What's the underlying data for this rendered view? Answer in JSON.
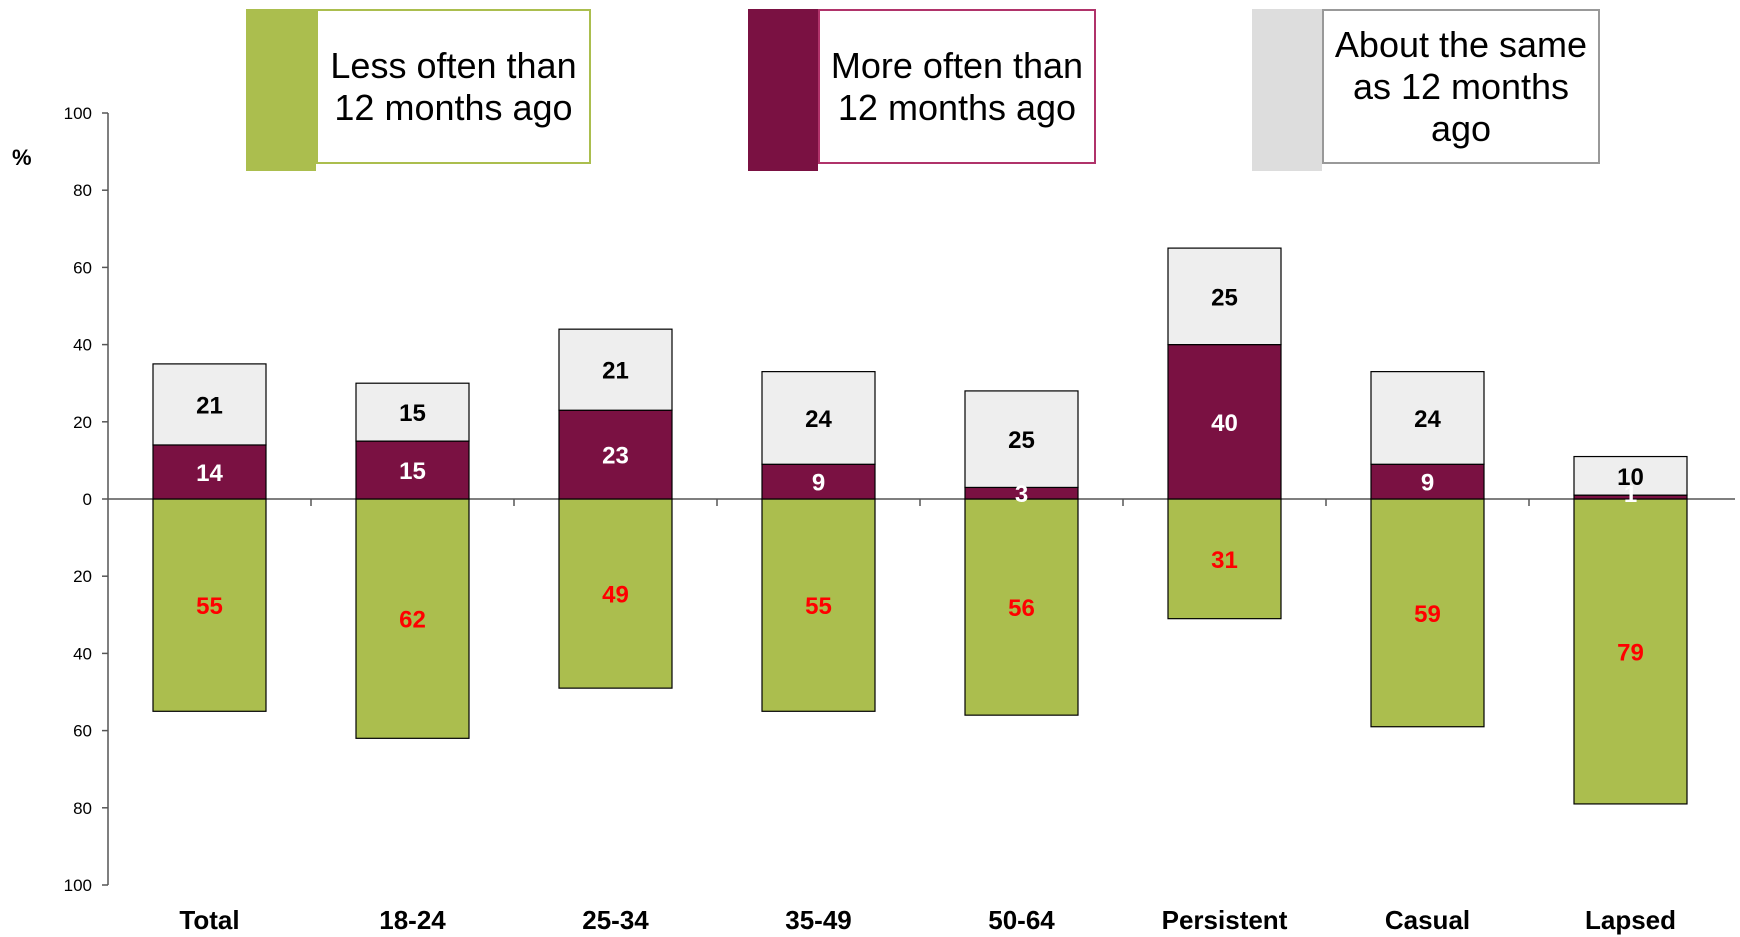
{
  "chart_data": {
    "type": "bar",
    "categories": [
      "Total",
      "18-24",
      "25-34",
      "35-49",
      "50-64",
      "Persistent",
      "Casual",
      "Lapsed"
    ],
    "series": [
      {
        "name": "Less often than 12 months ago",
        "values": [
          55,
          62,
          49,
          55,
          56,
          31,
          59,
          79
        ],
        "direction": "down",
        "color": "#ABBE4E",
        "label_color": "#FF0000"
      },
      {
        "name": "More often than 12 months ago",
        "values": [
          14,
          15,
          23,
          9,
          3,
          40,
          9,
          1
        ],
        "direction": "up",
        "color": "#7A1142",
        "label_color": "#FFFFFF"
      },
      {
        "name": "About the same as 12 months ago",
        "values": [
          21,
          15,
          21,
          24,
          25,
          25,
          24,
          10
        ],
        "direction": "up",
        "color": "#EEEEEE",
        "label_color": "#000000"
      }
    ],
    "ylabel": "%",
    "ylim": [
      -100,
      100
    ],
    "yticks": [
      100,
      80,
      60,
      40,
      20,
      0,
      20,
      40,
      60,
      80,
      100
    ],
    "stacked": true,
    "diverging": true,
    "grid": false,
    "legend_position": "top"
  },
  "legend": [
    {
      "label": "Less often than 12 months ago",
      "color": "#ABBE4E",
      "border": "#ABBE4E"
    },
    {
      "label": "More often than 12 months ago",
      "color": "#7A1142",
      "border": "#B0336A"
    },
    {
      "label": "About the same as 12 months ago",
      "color": "#DDDDDD",
      "border": "#999999"
    }
  ]
}
